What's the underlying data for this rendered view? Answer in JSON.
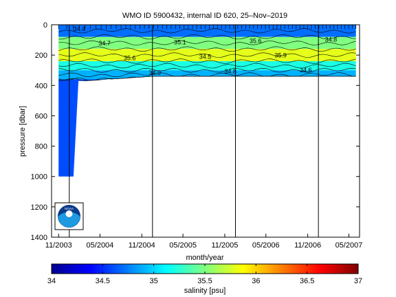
{
  "chart_data": {
    "type": "heatmap",
    "title": "WMO ID 5900432, internal ID 620, 25–Nov–2019",
    "xlabel": "month/year",
    "ylabel": "pressure [dbar]",
    "x_ticks": [
      "11/2003",
      "05/2004",
      "11/2004",
      "05/2005",
      "11/2005",
      "05/2006",
      "11/2006",
      "05/2007"
    ],
    "x_range": [
      "2003-10-15",
      "2007-07-01"
    ],
    "y_ticks": [
      "0",
      "200",
      "400",
      "600",
      "800",
      "1000",
      "1200",
      "1400"
    ],
    "ylim": [
      0,
      1400
    ],
    "y_reversed": true,
    "year_lines": [
      "2004-01-01",
      "2005-01-01",
      "2006-01-01",
      "2007-01-01"
    ],
    "colorbar": {
      "label": "salinity [psu]",
      "ticks": [
        "34",
        "34.5",
        "35",
        "35.5",
        "36",
        "36.5",
        "37"
      ],
      "range": [
        34,
        37
      ],
      "colormap": "jet"
    },
    "profile_depth": {
      "dates": [
        "2003-11-15",
        "2004-01-20",
        "2004-02-10",
        "2004-03-10",
        "2005-01-01",
        "2007-06-15"
      ],
      "max_pressure": [
        1000,
        1000,
        370,
        370,
        340,
        340
      ]
    },
    "salinity_layers": [
      {
        "pressure": [
          0,
          80
        ],
        "salinity": 34.7
      },
      {
        "pressure": [
          80,
          160
        ],
        "salinity": 35.5
      },
      {
        "pressure": [
          160,
          240
        ],
        "salinity": 35.8
      },
      {
        "pressure": [
          240,
          300
        ],
        "salinity": 35.2
      },
      {
        "pressure": [
          300,
          360
        ],
        "salinity": 34.9
      },
      {
        "pressure": [
          360,
          1000
        ],
        "salinity": 34.6
      }
    ],
    "contour_labels": [
      "34.4",
      "34.7",
      "35.6",
      "34.9",
      "35.1",
      "34.5",
      "34.8",
      "35.6",
      "35.9",
      "34.6",
      "34.8"
    ],
    "logo": "noaa-logo"
  }
}
